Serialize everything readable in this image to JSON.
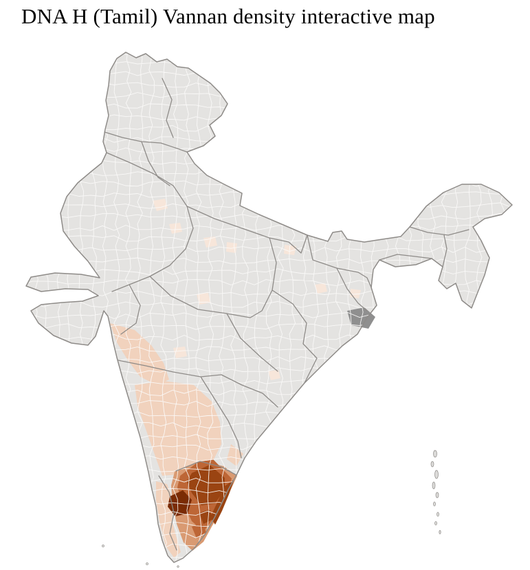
{
  "page": {
    "title": "DNA H (Tamil) Vannan density interactive map"
  },
  "map": {
    "country": "India",
    "colors": {
      "background": "#ffffff",
      "base": "#e4e3e1",
      "district_border": "#fbfaf9",
      "state_border": "#8e8b88",
      "island": "#dcdbd9",
      "dark_patch": "#8f8f8f",
      "density_1": "#f7e6da",
      "density_2": "#f1d2bd",
      "density_3": "#d99a72",
      "density_4": "#bd6636",
      "density_5": "#9a4412",
      "density_6": "#7a2b04"
    }
  }
}
